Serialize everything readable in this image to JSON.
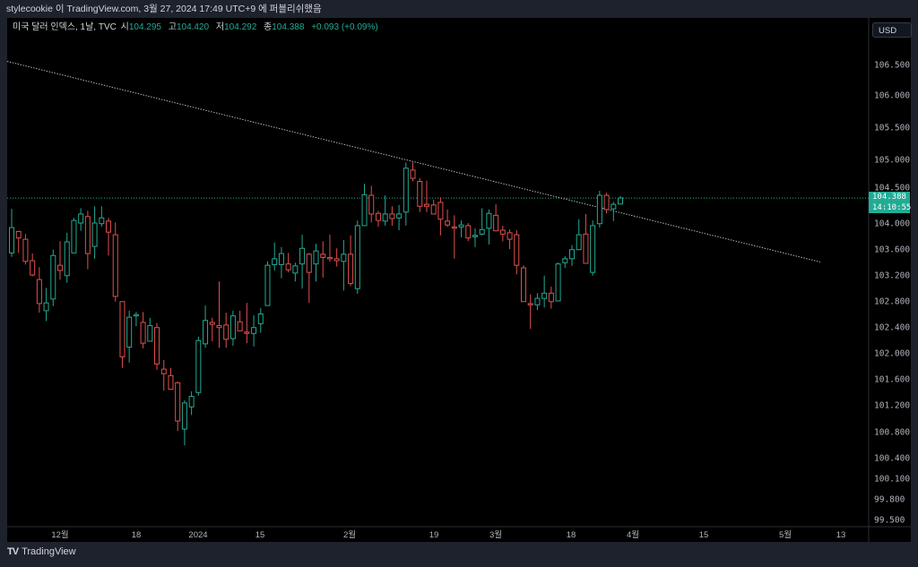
{
  "header": {
    "published_text": "stylecookie 이 TradingView.com, 3월 27, 2024 17:49 UTC+9 에 퍼블리쉬했음"
  },
  "legend": {
    "symbol": "미국 달러 인덱스, 1날, TVC",
    "open_label": "시",
    "open": "104.295",
    "high_label": "고",
    "high": "104.420",
    "low_label": "저",
    "low": "104.292",
    "close_label": "종",
    "close": "104.388",
    "change": "+0.093 (+0.09%)"
  },
  "price_axis": {
    "currency": "USD",
    "ticks": [
      "106.500",
      "106.000",
      "105.500",
      "105.000",
      "104.500",
      "104.000",
      "103.600",
      "103.200",
      "102.800",
      "102.400",
      "102.000",
      "101.600",
      "101.200",
      "100.800",
      "100.400",
      "100.100",
      "99.800",
      "99.500"
    ],
    "last_price": "104.388",
    "countdown": "14:10:55"
  },
  "time_axis": {
    "labels": [
      "12월",
      "18",
      "2024",
      "15",
      "2월",
      "19",
      "3월",
      "18",
      "4월",
      "15",
      "5월",
      "13"
    ]
  },
  "footer": {
    "brand": "TradingView"
  },
  "colors": {
    "up": "#22ab94",
    "down": "#e0504d",
    "background": "#000000",
    "trendline": "#b2b5be",
    "price_line": "#22ab94"
  },
  "chart_data": {
    "type": "candlestick",
    "interval": "1D",
    "scale": "log",
    "trendline": {
      "from_price": 106.55,
      "to_price": 103.4
    },
    "ohlc": [
      [
        103.54,
        104.22,
        103.48,
        103.93
      ],
      [
        103.87,
        103.88,
        103.54,
        103.77
      ],
      [
        103.75,
        103.83,
        103.36,
        103.41
      ],
      [
        103.42,
        103.53,
        103.18,
        103.2
      ],
      [
        103.13,
        103.32,
        102.62,
        102.76
      ],
      [
        102.65,
        103.0,
        102.49,
        102.77
      ],
      [
        102.83,
        103.59,
        102.72,
        103.5
      ],
      [
        103.35,
        103.72,
        103.13,
        103.27
      ],
      [
        103.19,
        103.85,
        103.08,
        103.71
      ],
      [
        103.54,
        104.08,
        103.54,
        104.04
      ],
      [
        104.0,
        104.23,
        103.88,
        104.14
      ],
      [
        104.1,
        104.19,
        103.29,
        103.53
      ],
      [
        103.64,
        104.26,
        103.45,
        104.0
      ],
      [
        103.99,
        104.26,
        103.94,
        104.08
      ],
      [
        104.03,
        104.08,
        103.5,
        103.86
      ],
      [
        103.82,
        104.01,
        102.79,
        102.87
      ],
      [
        102.79,
        102.79,
        101.77,
        101.94
      ],
      [
        102.09,
        102.65,
        101.85,
        102.55
      ],
      [
        102.57,
        102.63,
        102.41,
        102.59
      ],
      [
        102.47,
        102.63,
        102.07,
        102.15
      ],
      [
        102.18,
        102.54,
        102.18,
        102.42
      ],
      [
        102.39,
        102.46,
        101.74,
        101.83
      ],
      [
        101.75,
        101.89,
        101.42,
        101.68
      ],
      [
        101.65,
        101.77,
        101.44,
        101.44
      ],
      [
        101.54,
        101.56,
        100.81,
        100.96
      ],
      [
        100.84,
        101.27,
        100.59,
        101.23
      ],
      [
        101.17,
        101.41,
        101.05,
        101.33
      ],
      [
        101.39,
        102.25,
        101.34,
        102.19
      ],
      [
        102.14,
        102.73,
        102.08,
        102.5
      ],
      [
        102.47,
        102.54,
        102.18,
        102.44
      ],
      [
        102.42,
        103.1,
        102.08,
        102.39
      ],
      [
        102.43,
        102.62,
        102.08,
        102.21
      ],
      [
        102.22,
        102.65,
        102.11,
        102.57
      ],
      [
        102.48,
        102.65,
        102.34,
        102.34
      ],
      [
        102.32,
        102.77,
        102.15,
        102.3
      ],
      [
        102.3,
        102.58,
        102.1,
        102.39
      ],
      [
        102.45,
        102.69,
        102.31,
        102.6
      ],
      [
        102.73,
        103.41,
        102.73,
        103.35
      ],
      [
        103.36,
        103.7,
        103.27,
        103.45
      ],
      [
        103.36,
        103.63,
        103.15,
        103.53
      ],
      [
        103.37,
        103.54,
        103.24,
        103.28
      ],
      [
        103.23,
        103.39,
        103.1,
        103.34
      ],
      [
        103.37,
        103.82,
        102.99,
        103.61
      ],
      [
        103.52,
        103.54,
        102.77,
        103.24
      ],
      [
        103.37,
        103.68,
        103.1,
        103.57
      ],
      [
        103.52,
        103.72,
        103.16,
        103.47
      ],
      [
        103.47,
        103.82,
        103.4,
        103.45
      ],
      [
        103.45,
        103.61,
        103.33,
        103.42
      ],
      [
        103.41,
        103.74,
        102.96,
        103.52
      ],
      [
        103.52,
        103.81,
        103.03,
        103.07
      ],
      [
        102.99,
        104.04,
        102.91,
        103.96
      ],
      [
        103.96,
        104.61,
        103.96,
        104.44
      ],
      [
        104.43,
        104.58,
        104.01,
        104.14
      ],
      [
        104.15,
        104.19,
        103.94,
        104.04
      ],
      [
        104.03,
        104.43,
        103.96,
        104.14
      ],
      [
        104.14,
        104.26,
        103.96,
        104.07
      ],
      [
        104.08,
        104.28,
        103.89,
        104.14
      ],
      [
        104.17,
        104.95,
        103.96,
        104.86
      ],
      [
        104.83,
        104.95,
        104.65,
        104.7
      ],
      [
        104.65,
        104.7,
        104.17,
        104.26
      ],
      [
        104.29,
        104.66,
        104.17,
        104.26
      ],
      [
        104.28,
        104.36,
        104.14,
        104.14
      ],
      [
        104.32,
        104.4,
        103.81,
        104.06
      ],
      [
        104.03,
        104.21,
        103.94,
        103.97
      ],
      [
        103.94,
        104.12,
        103.45,
        103.92
      ],
      [
        103.94,
        104.04,
        103.78,
        103.97
      ],
      [
        103.96,
        104.0,
        103.72,
        103.77
      ],
      [
        103.79,
        103.92,
        103.63,
        103.81
      ],
      [
        103.83,
        104.23,
        103.81,
        103.9
      ],
      [
        103.92,
        104.21,
        103.67,
        104.15
      ],
      [
        104.12,
        104.29,
        103.88,
        103.88
      ],
      [
        103.89,
        103.96,
        103.72,
        103.83
      ],
      [
        103.85,
        103.9,
        103.6,
        103.75
      ],
      [
        103.82,
        103.89,
        103.21,
        103.35
      ],
      [
        103.31,
        103.35,
        102.79,
        102.79
      ],
      [
        102.76,
        102.9,
        102.37,
        102.74
      ],
      [
        102.74,
        102.92,
        102.66,
        102.84
      ],
      [
        102.84,
        103.19,
        102.7,
        102.92
      ],
      [
        102.92,
        103.02,
        102.68,
        102.79
      ],
      [
        102.8,
        103.39,
        102.8,
        103.37
      ],
      [
        103.39,
        103.49,
        103.31,
        103.45
      ],
      [
        103.45,
        103.66,
        103.34,
        103.59
      ],
      [
        103.59,
        104.06,
        103.59,
        103.82
      ],
      [
        103.83,
        104.14,
        103.38,
        103.38
      ],
      [
        103.24,
        104.04,
        103.19,
        103.96
      ],
      [
        103.99,
        104.5,
        103.93,
        104.43
      ],
      [
        104.43,
        104.47,
        104.15,
        104.21
      ],
      [
        104.22,
        104.33,
        104.03,
        104.29
      ],
      [
        104.295,
        104.42,
        104.292,
        104.388
      ]
    ]
  }
}
